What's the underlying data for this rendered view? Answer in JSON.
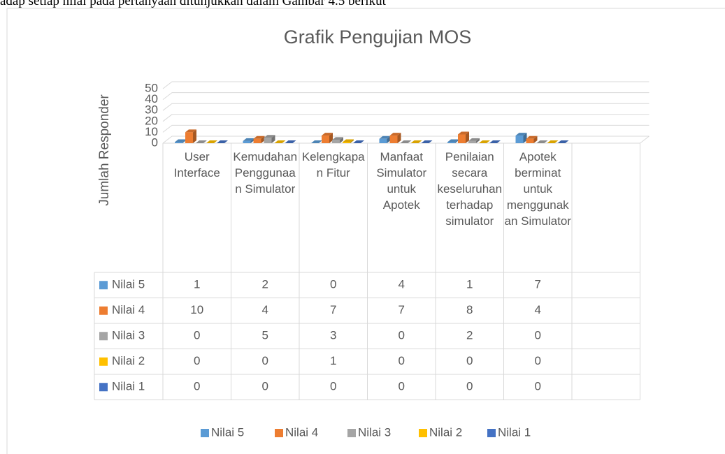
{
  "page_text": "adap setiap nilai pada pertanyaan ditunjukkan dalam Gambar 4.5 berikut",
  "chart_data": {
    "type": "bar3d",
    "title": "Grafik Pengujian MOS",
    "y_label": "Jumlah Responder",
    "categories": [
      "User Interface",
      "Kemudahan Penggunaan Simulator",
      "Kelengkapan Fitur",
      "Manfaat Simulator untuk Apotek",
      "Penilaian secara keseluruhan terhadap simulator",
      "Apotek berminat untuk menggunakan Simulator"
    ],
    "series": [
      {
        "name": "Nilai 5",
        "color": "#5b9bd5",
        "values": [
          1,
          2,
          0,
          4,
          1,
          7
        ]
      },
      {
        "name": "Nilai 4",
        "color": "#ed7d31",
        "values": [
          10,
          4,
          7,
          7,
          8,
          4
        ]
      },
      {
        "name": "Nilai 3",
        "color": "#a5a5a5",
        "values": [
          0,
          5,
          3,
          0,
          2,
          0
        ]
      },
      {
        "name": "Nilai 2",
        "color": "#ffc000",
        "values": [
          0,
          0,
          1,
          0,
          0,
          0
        ]
      },
      {
        "name": "Nilai 1",
        "color": "#4472c4",
        "values": [
          0,
          0,
          0,
          0,
          0,
          0
        ]
      }
    ],
    "ylim": [
      0,
      50
    ],
    "yticks": [
      0,
      10,
      20,
      30,
      40,
      50
    ],
    "grid": true,
    "data_table": true,
    "legend": "bottom"
  }
}
